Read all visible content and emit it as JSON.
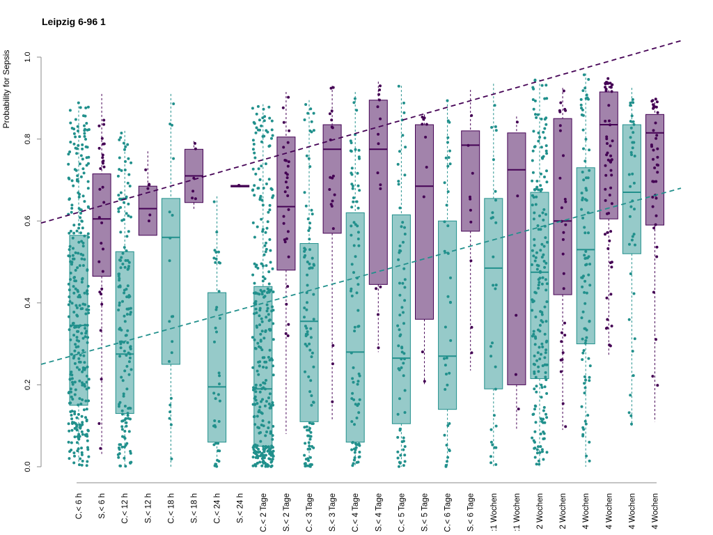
{
  "colors": {
    "C": "#21908c",
    "S": "#440154",
    "C_fill": "#96cac9",
    "S_fill": "#a283ab"
  },
  "chart_data": {
    "type": "box",
    "title": "Leipzig 6-96 1",
    "ylabel": "Probability for Sepsis",
    "xlabel": "",
    "ylim": [
      0,
      1
    ],
    "yticks": [
      0.0,
      0.2,
      0.4,
      0.6,
      0.8,
      1.0
    ],
    "ytick_labels": [
      "0.0",
      "0.2",
      "0.4",
      "0.6",
      "0.8",
      "1.0"
    ],
    "categories": [
      "C.< 6 h",
      "S.< 6 h",
      "C.< 12 h",
      "S.< 12 h",
      "C.< 18 h",
      "S.< 18 h",
      "C.< 24 h",
      "S.< 24 h",
      "C.< 2 Tage",
      "S.< 2 Tage",
      "C.< 3 Tage",
      "S.< 3 Tage",
      "C.< 4 Tage",
      "S.< 4 Tage",
      "C.< 5 Tage",
      "S.< 5 Tage",
      "C.< 6 Tage",
      "S.< 6 Tage",
      ":1 Wochen",
      ":1 Wochen",
      "2 Wochen",
      "2 Wochen",
      "4 Wochen",
      "4 Wochen",
      "4 Wochen",
      "4 Wochen"
    ],
    "series": [
      {
        "name": "C",
        "group": "C",
        "boxes": [
          {
            "q1": 0.15,
            "median": 0.345,
            "q3": 0.565,
            "whisker_low": 0.0,
            "whisker_high": 0.89,
            "n": 320
          },
          null,
          {
            "q1": 0.13,
            "median": 0.275,
            "q3": 0.525,
            "whisker_low": 0.0,
            "whisker_high": 0.82,
            "n": 160
          },
          null,
          {
            "q1": 0.25,
            "median": 0.56,
            "q3": 0.655,
            "whisker_low": 0.0,
            "whisker_high": 0.91,
            "n": 20
          },
          null,
          {
            "q1": 0.06,
            "median": 0.195,
            "q3": 0.425,
            "whisker_low": 0.0,
            "whisker_high": 0.66,
            "n": 40
          },
          null,
          {
            "q1": 0.05,
            "median": 0.19,
            "q3": 0.44,
            "whisker_low": 0.0,
            "whisker_high": 0.885,
            "n": 320
          },
          null,
          {
            "q1": 0.11,
            "median": 0.355,
            "q3": 0.545,
            "whisker_low": 0.0,
            "whisker_high": 0.895,
            "n": 100
          },
          null,
          {
            "q1": 0.06,
            "median": 0.28,
            "q3": 0.62,
            "whisker_low": 0.0,
            "whisker_high": 0.915,
            "n": 90
          },
          null,
          {
            "q1": 0.105,
            "median": 0.265,
            "q3": 0.615,
            "whisker_low": 0.0,
            "whisker_high": 0.93,
            "n": 70
          },
          null,
          {
            "q1": 0.14,
            "median": 0.27,
            "q3": 0.6,
            "whisker_low": 0.0,
            "whisker_high": 0.895,
            "n": 40
          },
          null,
          {
            "q1": 0.19,
            "median": 0.485,
            "q3": 0.655,
            "whisker_low": 0.0,
            "whisker_high": 0.935,
            "n": 30
          },
          null,
          {
            "q1": 0.215,
            "median": 0.475,
            "q3": 0.67,
            "whisker_low": 0.0,
            "whisker_high": 0.945,
            "n": 200
          },
          null,
          {
            "q1": 0.3,
            "median": 0.53,
            "q3": 0.73,
            "whisker_low": 0.0,
            "whisker_high": 0.96,
            "n": 90
          },
          null,
          {
            "q1": 0.52,
            "median": 0.67,
            "q3": 0.835,
            "whisker_low": 0.1,
            "whisker_high": 0.925,
            "n": 40
          },
          null
        ]
      },
      {
        "name": "S",
        "group": "S",
        "boxes": [
          null,
          {
            "q1": 0.465,
            "median": 0.605,
            "q3": 0.715,
            "whisker_low": 0.03,
            "whisker_high": 0.91,
            "n": 30
          },
          null,
          {
            "q1": 0.565,
            "median": 0.63,
            "q3": 0.685,
            "whisker_low": 0.565,
            "whisker_high": 0.77,
            "n": 6
          },
          null,
          {
            "q1": 0.645,
            "median": 0.71,
            "q3": 0.775,
            "whisker_low": 0.625,
            "whisker_high": 0.795,
            "n": 6
          },
          null,
          {
            "q1": 0.683,
            "median": 0.685,
            "q3": 0.687,
            "whisker_low": 0.683,
            "whisker_high": 0.687,
            "n": 2
          },
          null,
          {
            "q1": 0.48,
            "median": 0.635,
            "q3": 0.805,
            "whisker_low": 0.08,
            "whisker_high": 0.915,
            "n": 30
          },
          null,
          {
            "q1": 0.57,
            "median": 0.775,
            "q3": 0.835,
            "whisker_low": 0.115,
            "whisker_high": 0.93,
            "n": 20
          },
          null,
          {
            "q1": 0.445,
            "median": 0.775,
            "q3": 0.895,
            "whisker_low": 0.28,
            "whisker_high": 0.94,
            "n": 15
          },
          null,
          {
            "q1": 0.36,
            "median": 0.685,
            "q3": 0.835,
            "whisker_low": 0.2,
            "whisker_high": 0.86,
            "n": 10
          },
          null,
          {
            "q1": 0.575,
            "median": 0.785,
            "q3": 0.82,
            "whisker_low": 0.235,
            "whisker_high": 0.92,
            "n": 10
          },
          null,
          {
            "q1": 0.2,
            "median": 0.725,
            "q3": 0.815,
            "whisker_low": 0.09,
            "whisker_high": 0.855,
            "n": 5
          },
          null,
          {
            "q1": 0.42,
            "median": 0.6,
            "q3": 0.85,
            "whisker_low": 0.09,
            "whisker_high": 0.925,
            "n": 30
          },
          null,
          {
            "q1": 0.605,
            "median": 0.835,
            "q3": 0.915,
            "whisker_low": 0.27,
            "whisker_high": 0.95,
            "n": 60
          },
          null,
          {
            "q1": 0.59,
            "median": 0.815,
            "q3": 0.86,
            "whisker_low": 0.11,
            "whisker_high": 0.9,
            "n": 40
          }
        ]
      }
    ],
    "trend_lines": [
      {
        "group": "S",
        "style": "dashed",
        "y_start": 0.595,
        "y_end": 1.04
      },
      {
        "group": "C",
        "style": "dashed",
        "y_start": 0.25,
        "y_end": 0.68
      }
    ],
    "grid": false,
    "legend": "none"
  }
}
